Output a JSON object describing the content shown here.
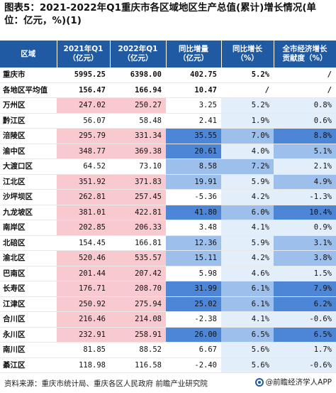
{
  "title": "图表5：2021-2022年Q1重庆市各区域地区生产总值(累计)增长情况(单 位：亿元，%)(1)",
  "columns": [
    "区域",
    "2021年Q1\n（亿元）",
    "2022年Q1\n（亿元）",
    "同比增量\n（亿元）",
    "同比增长\n（%）",
    "全市经济增长\n贡献度（%）"
  ],
  "rows": [
    {
      "name": "重庆市",
      "v2021": "5995.25",
      "v2022": "6398.00",
      "inc": "402.75",
      "growth": "5.2%",
      "contrib": "/",
      "bold": true
    },
    {
      "name": "各地区平均值",
      "v2021": "156.47",
      "v2022": "166.94",
      "inc": "10.47",
      "growth": "/",
      "contrib": "/",
      "bold": true
    },
    {
      "name": "万州区",
      "v2021": "247.02",
      "v2022": "250.27",
      "inc": "3.25",
      "growth": "5.2%",
      "contrib": "0.8%"
    },
    {
      "name": "黔江区",
      "v2021": "56.07",
      "v2022": "58.48",
      "inc": "2.41",
      "growth": "1.9%",
      "contrib": "0.6%"
    },
    {
      "name": "涪陵区",
      "v2021": "295.79",
      "v2022": "331.34",
      "inc": "35.55",
      "growth": "7.0%",
      "contrib": "8.8%"
    },
    {
      "name": "渝中区",
      "v2021": "348.77",
      "v2022": "369.38",
      "inc": "20.61",
      "growth": "4.0%",
      "contrib": "5.1%"
    },
    {
      "name": "大渡口区",
      "v2021": "64.52",
      "v2022": "73.10",
      "inc": "8.58",
      "growth": "7.2%",
      "contrib": "2.1%"
    },
    {
      "name": "江北区",
      "v2021": "351.92",
      "v2022": "371.83",
      "inc": "19.91",
      "growth": "5.9%",
      "contrib": "4.9%"
    },
    {
      "name": "沙坪坝区",
      "v2021": "262.81",
      "v2022": "257.45",
      "inc": "-5.36",
      "growth": "4.2%",
      "contrib": "-1.3%"
    },
    {
      "name": "九龙坡区",
      "v2021": "381.01",
      "v2022": "422.81",
      "inc": "41.80",
      "growth": "6.0%",
      "contrib": "10.4%"
    },
    {
      "name": "南岸区",
      "v2021": "202.85",
      "v2022": "206.33",
      "inc": "3.48",
      "growth": "4.1%",
      "contrib": "0.9%"
    },
    {
      "name": "北碚区",
      "v2021": "154.45",
      "v2022": "166.81",
      "inc": "12.36",
      "growth": "5.9%",
      "contrib": "3.1%"
    },
    {
      "name": "渝北区",
      "v2021": "520.46",
      "v2022": "535.57",
      "inc": "15.11",
      "growth": "4.2%",
      "contrib": "3.8%"
    },
    {
      "name": "巴南区",
      "v2021": "201.44",
      "v2022": "207.42",
      "inc": "5.98",
      "growth": "4.6%",
      "contrib": "1.5%"
    },
    {
      "name": "长寿区",
      "v2021": "176.71",
      "v2022": "208.70",
      "inc": "31.99",
      "growth": "6.1%",
      "contrib": "7.9%"
    },
    {
      "name": "江津区",
      "v2021": "250.92",
      "v2022": "275.94",
      "inc": "25.02",
      "growth": "6.1%",
      "contrib": "6.2%"
    },
    {
      "name": "合川区",
      "v2021": "216.46",
      "v2022": "214.08",
      "inc": "-2.38",
      "growth": "4.1%",
      "contrib": "-0.6%"
    },
    {
      "name": "永川区",
      "v2021": "232.91",
      "v2022": "258.91",
      "inc": "26.00",
      "growth": "6.5%",
      "contrib": "6.5%"
    },
    {
      "name": "南川区",
      "v2021": "81.85",
      "v2022": "88.52",
      "inc": "6.67",
      "growth": "5.6%",
      "contrib": "1.7%"
    },
    {
      "name": "綦江区",
      "v2021": "118.98",
      "v2022": "116.58",
      "inc": "-2.40",
      "growth": "5.6%",
      "contrib": "-0.6%"
    }
  ],
  "source": "资料来源：重庆市统计局、重庆各区人民政府 前瞻产业研究院",
  "brand": "@前瞻经济学人APP",
  "colors": {
    "header": "#1f5aa3",
    "gdp_high": "#f9c9d0",
    "inc_high": "#4d86d6",
    "inc_mid": "#9dbfec",
    "growth_band": "#e3eefb"
  }
}
